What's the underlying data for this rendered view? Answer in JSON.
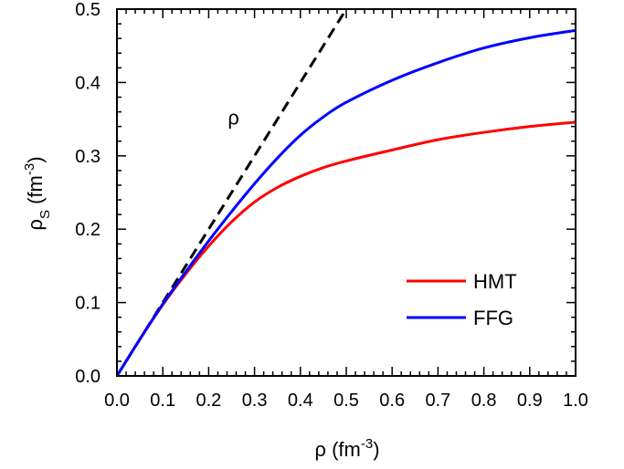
{
  "chart_data": {
    "type": "line",
    "xlabel": "ρ (fm⁻³)",
    "ylabel": "ρS (fm⁻³)",
    "xlim": [
      0.0,
      1.0
    ],
    "ylim": [
      0.0,
      0.5
    ],
    "x_ticks": [
      0.0,
      0.1,
      0.2,
      0.3,
      0.4,
      0.5,
      0.6,
      0.7,
      0.8,
      0.9,
      1.0
    ],
    "x_tick_labels": [
      "0.0",
      "0.1",
      "0.2",
      "0.3",
      "0.4",
      "0.5",
      "0.6",
      "0.7",
      "0.8",
      "0.9",
      "1.0"
    ],
    "y_ticks": [
      0.0,
      0.1,
      0.2,
      0.3,
      0.4,
      0.5
    ],
    "y_tick_labels": [
      "0.0",
      "0.1",
      "0.2",
      "0.3",
      "0.4",
      "0.5"
    ],
    "grid": false,
    "legend_position": "lower-right",
    "annotations": [
      {
        "text": "ρ",
        "x": 0.33,
        "y": 0.355
      }
    ],
    "series": [
      {
        "name": "ρ",
        "style": "dashed",
        "color": "#000000",
        "x": [
          0.0,
          0.5
        ],
        "y": [
          0.0,
          0.5
        ]
      },
      {
        "name": "HMT",
        "style": "solid",
        "color": "#ff0000",
        "x": [
          0.0,
          0.05,
          0.1,
          0.15,
          0.2,
          0.25,
          0.3,
          0.35,
          0.4,
          0.45,
          0.5,
          0.6,
          0.7,
          0.8,
          0.9,
          1.0
        ],
        "y": [
          0.0,
          0.05,
          0.097,
          0.139,
          0.177,
          0.21,
          0.237,
          0.257,
          0.272,
          0.284,
          0.293,
          0.308,
          0.322,
          0.332,
          0.34,
          0.346
        ]
      },
      {
        "name": "FFG",
        "style": "solid",
        "color": "#0000ff",
        "x": [
          0.0,
          0.05,
          0.1,
          0.15,
          0.2,
          0.25,
          0.3,
          0.35,
          0.4,
          0.45,
          0.5,
          0.6,
          0.7,
          0.8,
          0.9,
          1.0
        ],
        "y": [
          0.0,
          0.05,
          0.098,
          0.142,
          0.184,
          0.224,
          0.262,
          0.297,
          0.328,
          0.353,
          0.373,
          0.403,
          0.427,
          0.447,
          0.461,
          0.471
        ]
      }
    ],
    "legend": [
      {
        "name": "HMT",
        "color": "#ff0000"
      },
      {
        "name": "FFG",
        "color": "#0000ff"
      }
    ]
  },
  "labels": {
    "xlabel_main": "ρ (fm",
    "xlabel_sup": "-3",
    "xlabel_close": ")",
    "ylabel_main": "ρ",
    "ylabel_sub": "S",
    "ylabel_mid": " (fm",
    "ylabel_sup": "-3",
    "ylabel_close": ")",
    "annotation_rho": "ρ"
  }
}
